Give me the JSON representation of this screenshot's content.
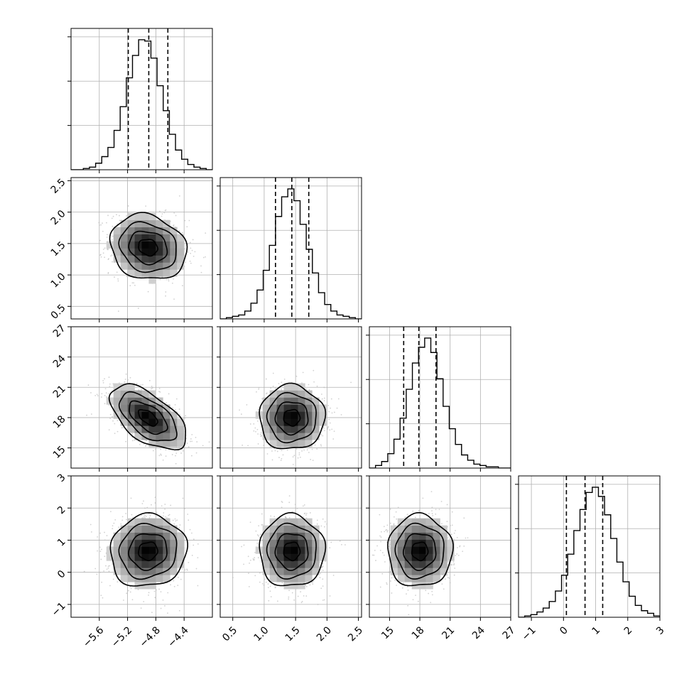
{
  "chart_data": {
    "type": "scatter",
    "kind": "corner plot (posterior samples)",
    "grid": true,
    "parameters": [
      {
        "index": 0,
        "range": [
          -6.0,
          -4.0
        ],
        "ticks": [
          -5.6,
          -5.2,
          -4.8,
          -4.4
        ],
        "tick_labels": [
          "−5.6",
          "−5.2",
          "−4.8",
          "−4.4"
        ],
        "quantiles": [
          -5.19,
          -4.9,
          -4.63
        ],
        "mean": -4.91,
        "sd": 0.27
      },
      {
        "index": 1,
        "range": [
          0.3,
          2.55
        ],
        "ticks": [
          0.5,
          1.0,
          1.5,
          2.0,
          2.5
        ],
        "tick_labels": [
          "0.5",
          "1.0",
          "1.5",
          "2.0",
          "2.5"
        ],
        "quantiles": [
          1.18,
          1.44,
          1.71
        ],
        "mean": 1.44,
        "sd": 0.26
      },
      {
        "index": 2,
        "range": [
          13.0,
          27.0
        ],
        "ticks": [
          15,
          18,
          21,
          24,
          27
        ],
        "tick_labels": [
          "15",
          "18",
          "21",
          "24",
          "27"
        ],
        "quantiles": [
          16.4,
          17.9,
          19.6
        ],
        "mean": 18.0,
        "sd": 1.6
      },
      {
        "index": 3,
        "range": [
          -1.4,
          3.0
        ],
        "ticks": [
          -1,
          0,
          1,
          2,
          3
        ],
        "tick_labels": [
          "−1",
          "0",
          "1",
          "2",
          "3"
        ],
        "quantiles": [
          0.09,
          0.67,
          1.22
        ],
        "mean": 0.66,
        "sd": 0.56
      }
    ],
    "histograms": [
      {
        "param": 0,
        "bins_from": -6.0,
        "bins_to": -4.0,
        "counts": [
          0,
          0,
          1,
          2,
          5,
          10,
          17,
          30,
          48,
          70,
          87,
          99,
          98,
          85,
          64,
          45,
          27,
          15,
          8,
          4,
          2,
          1,
          0
        ]
      },
      {
        "param": 1,
        "bins_from": 0.3,
        "bins_to": 2.55,
        "counts": [
          0,
          1,
          2,
          3,
          6,
          12,
          22,
          37,
          56,
          78,
          93,
          99,
          90,
          72,
          53,
          35,
          20,
          11,
          6,
          3,
          2,
          1,
          0
        ]
      },
      {
        "param": 2,
        "bins_from": 13.0,
        "bins_to": 27.0,
        "counts": [
          0,
          2,
          5,
          11,
          22,
          38,
          60,
          80,
          92,
          99,
          88,
          68,
          47,
          30,
          18,
          10,
          6,
          3,
          2,
          1,
          1,
          0,
          0
        ]
      },
      {
        "param": 3,
        "bins_from": -1.4,
        "bins_to": 3.0,
        "counts": [
          0,
          1,
          2,
          4,
          7,
          12,
          20,
          32,
          48,
          66,
          82,
          95,
          99,
          92,
          78,
          60,
          42,
          27,
          16,
          9,
          5,
          3,
          1
        ]
      }
    ],
    "correlations": [
      {
        "row": 1,
        "col": 0,
        "rho": -0.15
      },
      {
        "row": 2,
        "col": 0,
        "rho": -0.58
      },
      {
        "row": 2,
        "col": 1,
        "rho": 0.0
      },
      {
        "row": 3,
        "col": 0,
        "rho": 0.06
      },
      {
        "row": 3,
        "col": 1,
        "rho": 0.0
      },
      {
        "row": 3,
        "col": 2,
        "rho": 0.0
      }
    ],
    "contour_levels_sigma": [
      0.5,
      1.0,
      1.5,
      2.0
    ],
    "xlabel": "",
    "ylabel": ""
  },
  "colors": {
    "line": "#000000",
    "grid": "#b0b0b0",
    "points": "#bdbdbd",
    "frame": "#000000"
  }
}
